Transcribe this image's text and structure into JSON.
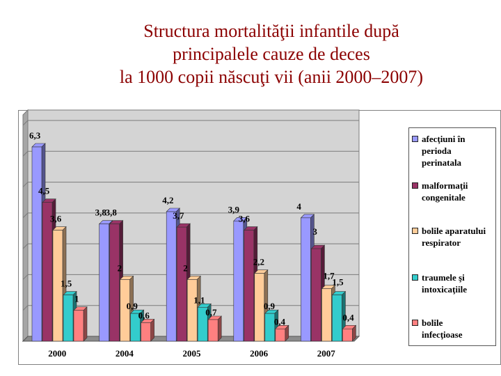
{
  "title_lines": [
    "Structura mortalităţii infantile după",
    "principalele cauze de deces",
    "la 1000 copii născuţi vii (anii 2000–2007)"
  ],
  "chart_data": {
    "type": "bar",
    "title": "Structura mortalităţii infantile după principalele cauze de deces la 1000 copii născuţi vii (anii 2000–2007)",
    "categories": [
      "2000",
      "2004",
      "2005",
      "2006",
      "2007"
    ],
    "series": [
      {
        "name": "afecţiuni în perioda perinatala",
        "color": "#9999ff",
        "values": [
          6.3,
          3.8,
          4.2,
          3.9,
          4
        ]
      },
      {
        "name": "malformaţii congenitale",
        "color": "#993366",
        "values": [
          4.5,
          3.8,
          3.7,
          3.6,
          3
        ]
      },
      {
        "name": "bolile aparatului respirator",
        "color": "#ffcc99",
        "values": [
          3.6,
          2,
          2,
          2.2,
          1.7
        ]
      },
      {
        "name": "traumele şi intoxicaţiile",
        "color": "#33cccc",
        "values": [
          1.5,
          0.9,
          1.1,
          0.9,
          1.5
        ]
      },
      {
        "name": "bolile infecţioase",
        "color": "#ff8080",
        "values": [
          1,
          0.6,
          0.7,
          0.4,
          0.4
        ]
      }
    ],
    "data_labels": [
      [
        "6,3",
        "4,5",
        "3,6",
        "1,5",
        "1"
      ],
      [
        "3,8",
        "3,8",
        "2",
        "0,9",
        "0,6"
      ],
      [
        "4,2",
        "3,7",
        "2",
        "1,1",
        "0,7"
      ],
      [
        "3,9",
        "3,6",
        "2,2",
        "0,9",
        "0,4"
      ],
      [
        "4",
        "3",
        "1,7",
        "1,5",
        "0,4"
      ]
    ],
    "legend_lines": [
      [
        "afecţiuni în",
        "perioda",
        "perinatala"
      ],
      [
        "malformaţii",
        "congenitale"
      ],
      [
        "bolile aparatului",
        "respirator"
      ],
      [
        "traumele şi",
        "intoxicaţiile"
      ],
      [
        "bolile",
        "infecţioase"
      ]
    ],
    "ylim": [
      0,
      7
    ],
    "grid": true,
    "xlabel": "",
    "ylabel": "",
    "legend_position": "right"
  }
}
